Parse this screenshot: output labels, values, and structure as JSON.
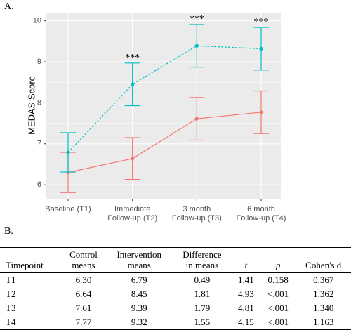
{
  "chart_data": {
    "type": "line",
    "panel_label": "A.",
    "ylabel": "MEDAS Score",
    "categories": [
      "Baseline (T1)",
      "Immediate\nFollow-up (T2)",
      "3 month\nFollow-up (T3)",
      "6 month\nFollow-up (T4)"
    ],
    "series": [
      {
        "color": "#F8766D",
        "dash": false,
        "values": [
          6.3,
          6.64,
          7.61,
          7.77
        ],
        "errors": [
          0.49,
          0.51,
          0.52,
          0.52
        ],
        "labels": [
          null,
          null,
          null,
          null
        ]
      },
      {
        "color": "#00BFC4",
        "dash": true,
        "values": [
          6.79,
          8.45,
          9.39,
          9.32
        ],
        "errors": [
          0.48,
          0.52,
          0.52,
          0.52
        ],
        "labels": [
          null,
          "***",
          "***",
          "***"
        ]
      }
    ],
    "ylim": [
      5.66,
      10.2
    ],
    "yticks": [
      6,
      7,
      8,
      9,
      10
    ],
    "grid": true
  },
  "table": {
    "label": "B.",
    "columns": [
      "Timepoint",
      "Control\nmeans",
      "Intervention\nmeans",
      "Difference\nin means",
      "t",
      "p",
      "Cohen's d"
    ],
    "rows": [
      [
        "T1",
        "6.30",
        "6.79",
        "0.49",
        "1.41",
        "0.158",
        "0.367"
      ],
      [
        "T2",
        "6.64",
        "8.45",
        "1.81",
        "4.93",
        "<.001",
        "1.362"
      ],
      [
        "T3",
        "7.61",
        "9.39",
        "1.79",
        "4.81",
        "<.001",
        "1.340"
      ],
      [
        "T4",
        "7.77",
        "9.32",
        "1.55",
        "4.15",
        "<.001",
        "1.163"
      ]
    ]
  }
}
